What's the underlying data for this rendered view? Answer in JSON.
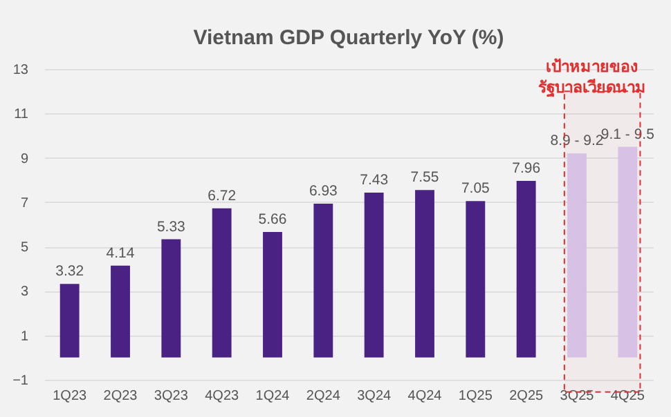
{
  "chart_data": {
    "type": "bar",
    "title": "Vietnam GDP Quarterly YoY (%)",
    "categories": [
      "1Q23",
      "2Q23",
      "3Q23",
      "4Q23",
      "1Q24",
      "2Q24",
      "3Q24",
      "4Q24",
      "1Q25",
      "2Q25",
      "3Q25",
      "4Q25"
    ],
    "values": [
      3.32,
      4.14,
      5.33,
      6.72,
      5.66,
      6.93,
      7.43,
      7.55,
      7.05,
      7.96,
      9.2,
      9.5
    ],
    "value_labels": [
      "3.32",
      "4.14",
      "5.33",
      "6.72",
      "5.66",
      "6.93",
      "7.43",
      "7.55",
      "7.05",
      "7.96",
      null,
      null
    ],
    "colors": [
      "#4a2283",
      "#4a2283",
      "#4a2283",
      "#4a2283",
      "#4a2283",
      "#4a2283",
      "#4a2283",
      "#4a2283",
      "#4a2283",
      "#4a2283",
      "#d7c8ee",
      "#d7c8ee"
    ],
    "ylim": [
      -1,
      13
    ],
    "yticks": [
      -1,
      1,
      3,
      5,
      7,
      9,
      11,
      13
    ],
    "grid": "y",
    "annotations": [
      {
        "text": "8.9 - 9.2",
        "x": "3Q25",
        "y": 9.2
      },
      {
        "text": "9.1 - 9.5",
        "x": "4Q25",
        "y": 9.5
      }
    ],
    "bands": [
      {
        "axis": "x",
        "from": "3Q25",
        "to": "4Q25",
        "label": "เป้าหมายของ\nรัฐบาลเวียดนาม",
        "color": "#e03030"
      }
    ]
  }
}
